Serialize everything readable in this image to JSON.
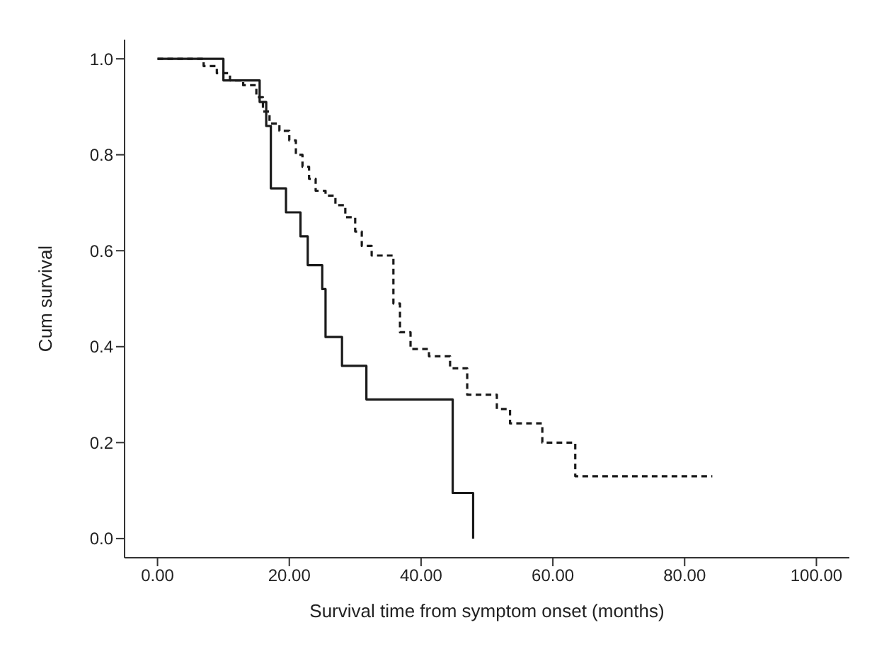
{
  "chart_data": {
    "type": "step",
    "xlabel": "Survival time from symptom onset (months)",
    "ylabel": "Cum survival",
    "xlim": [
      -5,
      105
    ],
    "xticks": [
      {
        "value": 0,
        "label": "0.00"
      },
      {
        "value": 20,
        "label": "20.00"
      },
      {
        "value": 40,
        "label": "40.00"
      },
      {
        "value": 60,
        "label": "60.00"
      },
      {
        "value": 80,
        "label": "80.00"
      },
      {
        "value": 100,
        "label": "100.00"
      }
    ],
    "ylim": [
      -0.04,
      1.04
    ],
    "yticks": [
      {
        "value": 0,
        "label": "0.0"
      },
      {
        "value": 0.2,
        "label": "0.2"
      },
      {
        "value": 0.4,
        "label": "0.4"
      },
      {
        "value": 0.6,
        "label": "0.6"
      },
      {
        "value": 0.8,
        "label": "0.8"
      },
      {
        "value": 1,
        "label": "1.0"
      }
    ],
    "grid": false,
    "legend": false,
    "series": [
      {
        "color": "#1a1a1a",
        "line_style": "solid",
        "x": [
          0,
          10,
          15.5,
          16.5,
          17.2,
          19.5,
          21.7,
          22.8,
          25,
          25.5,
          28,
          31.7,
          44.8,
          47.9
        ],
        "values": [
          1,
          0.955,
          0.91,
          0.86,
          0.73,
          0.68,
          0.63,
          0.57,
          0.52,
          0.42,
          0.36,
          0.29,
          0.095,
          0
        ]
      },
      {
        "color": "#1a1a1a",
        "line_style": "dashed",
        "x": [
          0,
          7,
          9,
          11,
          13,
          15,
          16,
          17,
          18.5,
          20,
          21,
          22,
          23,
          24,
          25.5,
          27,
          28.5,
          30,
          31,
          32.5,
          35.8,
          36.8,
          38.4,
          41.2,
          44.4,
          47,
          51.5,
          53.5,
          58.4,
          63.4,
          84.2
        ],
        "values": [
          1,
          0.985,
          0.97,
          0.955,
          0.945,
          0.92,
          0.89,
          0.865,
          0.85,
          0.83,
          0.8,
          0.775,
          0.75,
          0.725,
          0.715,
          0.695,
          0.67,
          0.64,
          0.61,
          0.59,
          0.49,
          0.43,
          0.395,
          0.38,
          0.355,
          0.3,
          0.27,
          0.24,
          0.2,
          0.13,
          0.13
        ]
      }
    ]
  }
}
